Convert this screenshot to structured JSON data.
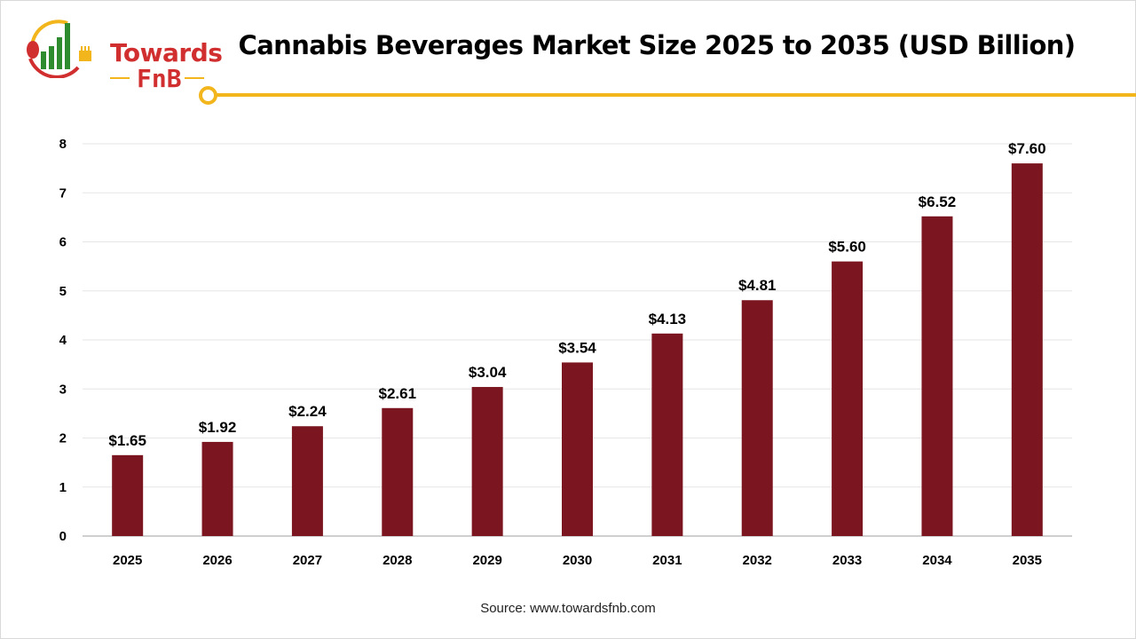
{
  "logo": {
    "line1": "Towards",
    "line2": "FnB",
    "colors": {
      "red": "#d12f2f",
      "green": "#2e8b2e",
      "yellow": "#f2b51c"
    }
  },
  "header": {
    "title": "Cannabis Beverages Market Size 2025 to 2035 (USD Billion)",
    "accent_color": "#f2b51c"
  },
  "footer": {
    "source": "Source: www.towardsfnb.com"
  },
  "chart_data": {
    "type": "bar",
    "title": "Cannabis Beverages Market Size 2025 to 2035 (USD Billion)",
    "categories": [
      "2025",
      "2026",
      "2027",
      "2028",
      "2029",
      "2030",
      "2031",
      "2032",
      "2033",
      "2034",
      "2035"
    ],
    "values": [
      1.65,
      1.92,
      2.24,
      2.61,
      3.04,
      3.54,
      4.13,
      4.81,
      5.6,
      6.52,
      7.6
    ],
    "data_labels": [
      "$1.65",
      "$1.92",
      "$2.24",
      "$2.61",
      "$3.04",
      "$3.54",
      "$4.13",
      "$4.81",
      "$5.60",
      "$6.52",
      "$7.60"
    ],
    "ylim": [
      0,
      8
    ],
    "yticks": [
      "0",
      "1",
      "2",
      "3",
      "4",
      "5",
      "6",
      "7",
      "8"
    ],
    "xlabel": "",
    "ylabel": "",
    "grid": true,
    "bar_color": "#7b1620"
  }
}
